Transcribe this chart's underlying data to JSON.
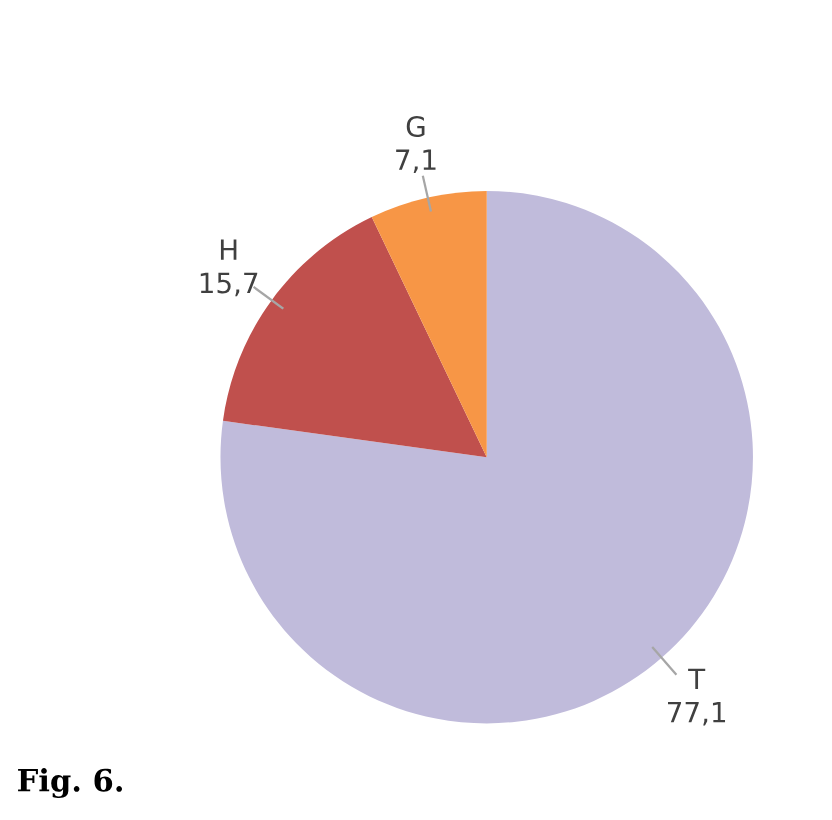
{
  "chart_data": {
    "type": "pie",
    "categories": [
      "T",
      "H",
      "G"
    ],
    "values": [
      77.1,
      15.7,
      7.1
    ],
    "colors": [
      "#c0bbdb",
      "#c0504d",
      "#f79646"
    ],
    "value_labels": [
      "77,1",
      "15,7",
      "7,1"
    ],
    "legend": false,
    "annotations": [
      "Fig. 6."
    ]
  }
}
